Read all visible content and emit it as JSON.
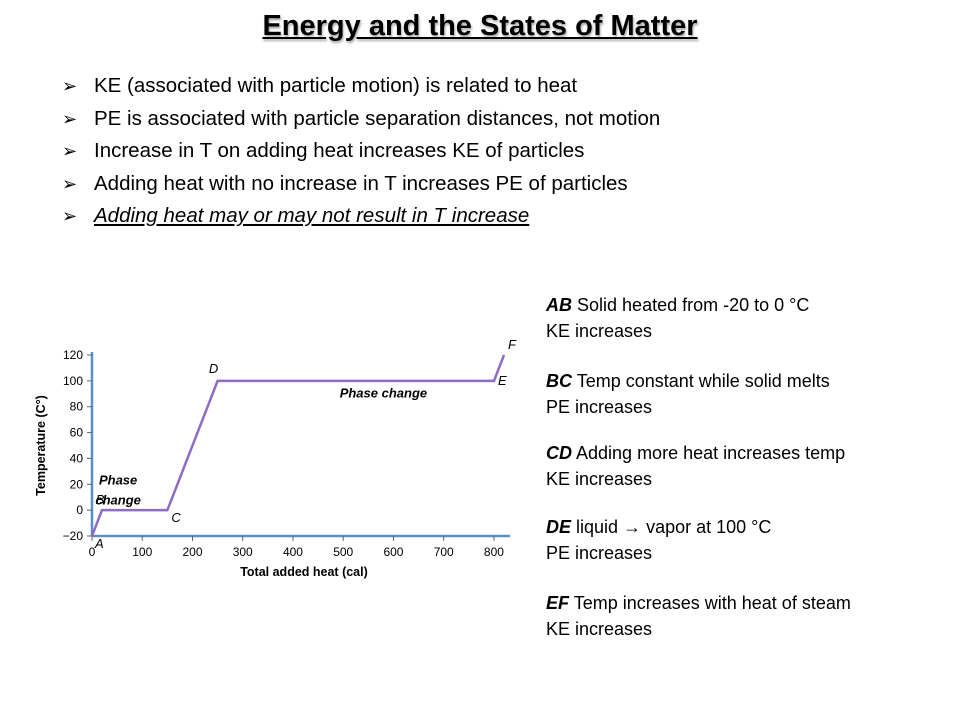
{
  "title": "Energy and the States of Matter",
  "bullet_marker": "➢",
  "bullets": [
    "KE (associated with particle motion) is related to heat",
    "PE is associated with particle separation distances, not motion",
    "Increase in T on adding heat increases KE of particles",
    "Adding heat with no increase in T increases PE of particles",
    "Adding heat may or may not result in T increase"
  ],
  "descriptions": [
    {
      "segment": "AB",
      "line1": "Solid heated from -20 to 0 °C",
      "line2": "KE increases"
    },
    {
      "segment": "BC",
      "line1": "Temp constant while solid melts",
      "line2": "PE increases"
    },
    {
      "segment": "CD",
      "line1": "Adding more heat increases temp",
      "line2": "KE increases"
    },
    {
      "segment": "DE",
      "line1": "liquid → vapor at 100 °C",
      "line2": "PE increases"
    },
    {
      "segment": "EF",
      "line1": "Temp increases with heat of steam",
      "line2": "KE increases"
    }
  ],
  "chart_data": {
    "type": "line",
    "xlabel": "Total added heat (cal)",
    "ylabel": "Temperature (C°)",
    "xlim": [
      0,
      820
    ],
    "ylim": [
      -20,
      120
    ],
    "xticks": [
      0,
      100,
      200,
      300,
      400,
      500,
      600,
      700,
      800
    ],
    "yticks": [
      -20,
      0,
      20,
      40,
      60,
      80,
      100,
      120
    ],
    "line_color": "#8e6cc4",
    "axis_color": "#5b8fc7",
    "points": [
      {
        "label": "A",
        "x": 0,
        "y": -20
      },
      {
        "label": "B",
        "x": 20,
        "y": 0
      },
      {
        "label": "C",
        "x": 150,
        "y": 0
      },
      {
        "label": "D",
        "x": 250,
        "y": 100
      },
      {
        "label": "E",
        "x": 800,
        "y": 100
      },
      {
        "label": "F",
        "x": 820,
        "y": 120
      }
    ],
    "annotations": [
      {
        "lines": [
          "Phase",
          "change"
        ],
        "x": 52,
        "y": 20
      },
      {
        "lines": [
          "Phase change"
        ],
        "x": 580,
        "y": 87
      }
    ]
  }
}
